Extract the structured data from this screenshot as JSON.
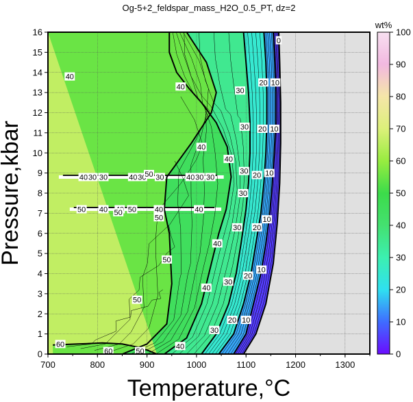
{
  "chart_data": {
    "type": "heatmap",
    "title": "Og-5+2_feldspar_mass_H2O_0.5_PT, dz=2",
    "xlabel": "Temperature,°C",
    "ylabel": "Pressure,kbar",
    "xlim": [
      700,
      1350
    ],
    "ylim": [
      0,
      16
    ],
    "x_ticks": [
      "700",
      "800",
      "900",
      "1000",
      "1100",
      "1200",
      "1300"
    ],
    "y_ticks": [
      "0",
      "1",
      "2",
      "3",
      "4",
      "5",
      "6",
      "7",
      "8",
      "9",
      "10",
      "11",
      "12",
      "13",
      "14",
      "15",
      "16"
    ],
    "grid": true,
    "colorbar": {
      "label": "wt%",
      "range": [
        0,
        100
      ],
      "ticks": [
        "0",
        "10",
        "20",
        "30",
        "40",
        "50",
        "60",
        "70",
        "80",
        "90",
        "100"
      ],
      "colors": [
        "#6a0dff",
        "#3f6cff",
        "#2fe0f0",
        "#3cf0b0",
        "#44e070",
        "#3cdc4a",
        "#98ec40",
        "#dcf07a",
        "#f5e6a8",
        "#f2b8e0",
        "#f7e0f0"
      ]
    },
    "no_data_color": "#e0e0e0",
    "contours": [
      {
        "level": 60,
        "points": [
          [
            710,
            0.45
          ],
          [
            760,
            0.5
          ],
          [
            810,
            0.55
          ],
          [
            850,
            0.5
          ],
          [
            880,
            0.35
          ],
          [
            900,
            0.2
          ],
          [
            920,
            0
          ]
        ]
      },
      {
        "level": 50,
        "points": [
          [
            850,
            0
          ],
          [
            900,
            0.5
          ],
          [
            940,
            1.5
          ],
          [
            950,
            3.5
          ],
          [
            945,
            6
          ],
          [
            935,
            7.2
          ],
          [
            940,
            8.8
          ],
          [
            990,
            10.5
          ],
          [
            1030,
            12
          ],
          [
            1040,
            13
          ],
          [
            1020,
            14.5
          ],
          [
            980,
            16
          ]
        ]
      },
      {
        "level": 40,
        "points": [
          [
            935,
            0
          ],
          [
            980,
            0.8
          ],
          [
            1010,
            2.5
          ],
          [
            1030,
            4.5
          ],
          [
            1045,
            6
          ],
          [
            1060,
            7.2
          ],
          [
            1070,
            8.8
          ],
          [
            1062,
            10.3
          ],
          [
            1040,
            11.5
          ],
          [
            1010,
            12.5
          ],
          [
            985,
            13.2
          ],
          [
            960,
            14
          ],
          [
            945,
            15
          ],
          [
            945,
            16
          ]
        ]
      },
      {
        "level": 30,
        "points": [
          [
            1010,
            0
          ],
          [
            1040,
            1
          ],
          [
            1065,
            2.5
          ],
          [
            1080,
            4
          ],
          [
            1090,
            5.5
          ],
          [
            1100,
            7.2
          ],
          [
            1105,
            8.5
          ],
          [
            1108,
            10
          ],
          [
            1108,
            11.5
          ],
          [
            1105,
            13
          ],
          [
            1100,
            14.5
          ],
          [
            1095,
            16
          ]
        ]
      },
      {
        "level": 20,
        "points": [
          [
            1045,
            0
          ],
          [
            1075,
            1
          ],
          [
            1095,
            2.5
          ],
          [
            1110,
            4
          ],
          [
            1120,
            5.5
          ],
          [
            1130,
            7
          ],
          [
            1136,
            8.5
          ],
          [
            1140,
            10
          ],
          [
            1142,
            11.5
          ],
          [
            1142,
            13
          ],
          [
            1140,
            14.5
          ],
          [
            1136,
            16
          ]
        ]
      },
      {
        "level": 10,
        "points": [
          [
            1075,
            0
          ],
          [
            1100,
            1
          ],
          [
            1115,
            2.5
          ],
          [
            1130,
            4
          ],
          [
            1140,
            5.5
          ],
          [
            1148,
            7
          ],
          [
            1153,
            8.5
          ],
          [
            1157,
            10
          ],
          [
            1160,
            11.5
          ],
          [
            1160,
            13
          ],
          [
            1158,
            14.5
          ],
          [
            1155,
            16
          ]
        ]
      },
      {
        "level": 0,
        "points": [
          [
            1095,
            0
          ],
          [
            1120,
            1
          ],
          [
            1140,
            2.5
          ],
          [
            1155,
            4.5
          ],
          [
            1163,
            6.5
          ],
          [
            1168,
            8.5
          ],
          [
            1170,
            10.5
          ],
          [
            1170,
            12.5
          ],
          [
            1168,
            14.5
          ],
          [
            1166,
            16
          ]
        ]
      }
    ],
    "contour_labels": [
      {
        "text": "60",
        "x": 725,
        "y": 0.5
      },
      {
        "text": "60",
        "x": 822,
        "y": 0.15
      },
      {
        "text": "50",
        "x": 886,
        "y": 0.15
      },
      {
        "text": "50",
        "x": 880,
        "y": 2.7
      },
      {
        "text": "50",
        "x": 940,
        "y": 4.7
      },
      {
        "text": "50",
        "x": 924,
        "y": 6.8
      },
      {
        "text": "40",
        "x": 1010,
        "y": 10.3
      },
      {
        "text": "40",
        "x": 1065,
        "y": 9.7
      },
      {
        "text": "40",
        "x": 1042,
        "y": 5.5
      },
      {
        "text": "40",
        "x": 1020,
        "y": 3.3
      },
      {
        "text": "40",
        "x": 967,
        "y": 0.4
      },
      {
        "text": "40",
        "x": 744,
        "y": 13.8
      },
      {
        "text": "40",
        "x": 968,
        "y": 13.3
      },
      {
        "text": "30",
        "x": 1088,
        "y": 13.1
      },
      {
        "text": "30",
        "x": 1097,
        "y": 11.3
      },
      {
        "text": "30",
        "x": 1096,
        "y": 9.1
      },
      {
        "text": "30",
        "x": 1094,
        "y": 8.0
      },
      {
        "text": "30",
        "x": 1082,
        "y": 6.3
      },
      {
        "text": "30",
        "x": 1064,
        "y": 3.6
      },
      {
        "text": "30",
        "x": 1036,
        "y": 1.2
      },
      {
        "text": "20",
        "x": 1135,
        "y": 13.5
      },
      {
        "text": "20",
        "x": 1133,
        "y": 11.2
      },
      {
        "text": "20",
        "x": 1122,
        "y": 8.9
      },
      {
        "text": "20",
        "x": 1122,
        "y": 6.3
      },
      {
        "text": "20",
        "x": 1104,
        "y": 3.9
      },
      {
        "text": "20",
        "x": 1072,
        "y": 1.7
      },
      {
        "text": "10",
        "x": 1159,
        "y": 13.5
      },
      {
        "text": "10",
        "x": 1157,
        "y": 11.2
      },
      {
        "text": "10",
        "x": 1147,
        "y": 9.0
      },
      {
        "text": "10",
        "x": 1142,
        "y": 6.7
      },
      {
        "text": "10",
        "x": 1131,
        "y": 4.2
      },
      {
        "text": "10",
        "x": 1100,
        "y": 1.7
      },
      {
        "text": "0",
        "x": 1166,
        "y": 15.6
      },
      {
        "text": "40",
        "x": 772,
        "y": 8.8
      },
      {
        "text": "30",
        "x": 790,
        "y": 8.8
      },
      {
        "text": "30",
        "x": 812,
        "y": 8.8
      },
      {
        "text": "40",
        "x": 872,
        "y": 8.8
      },
      {
        "text": "30",
        "x": 890,
        "y": 8.8
      },
      {
        "text": "50",
        "x": 904,
        "y": 8.95
      },
      {
        "text": "30",
        "x": 926,
        "y": 8.8
      },
      {
        "text": "40",
        "x": 988,
        "y": 8.8
      },
      {
        "text": "30",
        "x": 1006,
        "y": 8.8
      },
      {
        "text": "30",
        "x": 1028,
        "y": 8.8
      },
      {
        "text": "50",
        "x": 768,
        "y": 7.2
      },
      {
        "text": "40",
        "x": 812,
        "y": 7.2
      },
      {
        "text": "40",
        "x": 845,
        "y": 7.2
      },
      {
        "text": "50",
        "x": 842,
        "y": 7.05
      },
      {
        "text": "50",
        "x": 870,
        "y": 7.2
      },
      {
        "text": "40",
        "x": 924,
        "y": 7.2
      },
      {
        "text": "40",
        "x": 1005,
        "y": 7.2
      }
    ],
    "artifact_bands": [
      {
        "y": 8.8,
        "x_range": [
          722,
          1055
        ]
      },
      {
        "y": 7.2,
        "x_range": [
          744,
          1050
        ]
      }
    ]
  }
}
